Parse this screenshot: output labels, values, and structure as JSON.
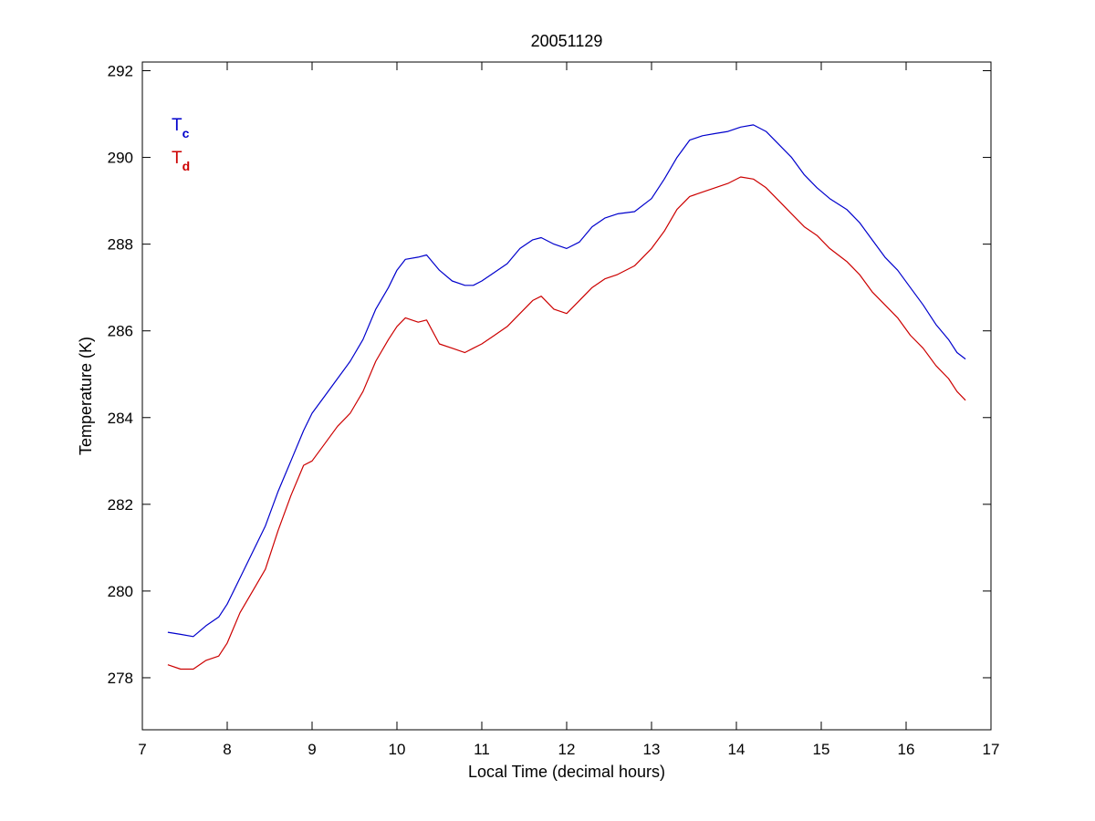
{
  "chart_data": {
    "type": "line",
    "title": "20051129",
    "xlabel": "Local Time (decimal hours)",
    "ylabel": "Temperature (K)",
    "xlim": [
      7,
      17
    ],
    "ylim": [
      276.8,
      292.2
    ],
    "xticks": [
      7,
      8,
      9,
      10,
      11,
      12,
      13,
      14,
      15,
      16,
      17
    ],
    "yticks": [
      278,
      280,
      282,
      284,
      286,
      288,
      290,
      292
    ],
    "grid": false,
    "legend_position": "top-left",
    "series": [
      {
        "name": "T",
        "name_subscript": "c",
        "color": "#0000cc",
        "points": [
          [
            7.3,
            279.05
          ],
          [
            7.45,
            279.0
          ],
          [
            7.6,
            278.95
          ],
          [
            7.75,
            279.2
          ],
          [
            7.9,
            279.4
          ],
          [
            8.0,
            279.7
          ],
          [
            8.15,
            280.3
          ],
          [
            8.3,
            280.9
          ],
          [
            8.45,
            281.5
          ],
          [
            8.6,
            282.3
          ],
          [
            8.75,
            283.0
          ],
          [
            8.9,
            283.7
          ],
          [
            9.0,
            284.1
          ],
          [
            9.15,
            284.5
          ],
          [
            9.3,
            284.9
          ],
          [
            9.45,
            285.3
          ],
          [
            9.6,
            285.8
          ],
          [
            9.75,
            286.5
          ],
          [
            9.9,
            287.0
          ],
          [
            10.0,
            287.4
          ],
          [
            10.1,
            287.65
          ],
          [
            10.25,
            287.7
          ],
          [
            10.35,
            287.75
          ],
          [
            10.5,
            287.4
          ],
          [
            10.65,
            287.15
          ],
          [
            10.8,
            287.05
          ],
          [
            10.9,
            287.05
          ],
          [
            11.0,
            287.15
          ],
          [
            11.15,
            287.35
          ],
          [
            11.3,
            287.55
          ],
          [
            11.45,
            287.9
          ],
          [
            11.6,
            288.1
          ],
          [
            11.7,
            288.15
          ],
          [
            11.85,
            288.0
          ],
          [
            12.0,
            287.9
          ],
          [
            12.15,
            288.05
          ],
          [
            12.3,
            288.4
          ],
          [
            12.45,
            288.6
          ],
          [
            12.6,
            288.7
          ],
          [
            12.8,
            288.75
          ],
          [
            13.0,
            289.05
          ],
          [
            13.15,
            289.5
          ],
          [
            13.3,
            290.0
          ],
          [
            13.45,
            290.4
          ],
          [
            13.6,
            290.5
          ],
          [
            13.75,
            290.55
          ],
          [
            13.9,
            290.6
          ],
          [
            14.05,
            290.7
          ],
          [
            14.2,
            290.75
          ],
          [
            14.35,
            290.6
          ],
          [
            14.5,
            290.3
          ],
          [
            14.65,
            290.0
          ],
          [
            14.8,
            289.6
          ],
          [
            14.95,
            289.3
          ],
          [
            15.1,
            289.05
          ],
          [
            15.3,
            288.8
          ],
          [
            15.45,
            288.5
          ],
          [
            15.6,
            288.1
          ],
          [
            15.75,
            287.7
          ],
          [
            15.9,
            287.4
          ],
          [
            16.05,
            287.0
          ],
          [
            16.2,
            286.6
          ],
          [
            16.35,
            286.15
          ],
          [
            16.5,
            285.8
          ],
          [
            16.6,
            285.5
          ],
          [
            16.7,
            285.35
          ]
        ]
      },
      {
        "name": "T",
        "name_subscript": "d",
        "color": "#cc0000",
        "points": [
          [
            7.3,
            278.3
          ],
          [
            7.45,
            278.2
          ],
          [
            7.6,
            278.2
          ],
          [
            7.75,
            278.4
          ],
          [
            7.9,
            278.5
          ],
          [
            8.0,
            278.8
          ],
          [
            8.15,
            279.5
          ],
          [
            8.3,
            280.0
          ],
          [
            8.45,
            280.5
          ],
          [
            8.6,
            281.4
          ],
          [
            8.75,
            282.2
          ],
          [
            8.9,
            282.9
          ],
          [
            9.0,
            283.0
          ],
          [
            9.15,
            283.4
          ],
          [
            9.3,
            283.8
          ],
          [
            9.45,
            284.1
          ],
          [
            9.6,
            284.6
          ],
          [
            9.75,
            285.3
          ],
          [
            9.9,
            285.8
          ],
          [
            10.0,
            286.1
          ],
          [
            10.1,
            286.3
          ],
          [
            10.25,
            286.2
          ],
          [
            10.35,
            286.25
          ],
          [
            10.5,
            285.7
          ],
          [
            10.65,
            285.6
          ],
          [
            10.8,
            285.5
          ],
          [
            10.9,
            285.6
          ],
          [
            11.0,
            285.7
          ],
          [
            11.15,
            285.9
          ],
          [
            11.3,
            286.1
          ],
          [
            11.45,
            286.4
          ],
          [
            11.6,
            286.7
          ],
          [
            11.7,
            286.8
          ],
          [
            11.85,
            286.5
          ],
          [
            12.0,
            286.4
          ],
          [
            12.15,
            286.7
          ],
          [
            12.3,
            287.0
          ],
          [
            12.45,
            287.2
          ],
          [
            12.6,
            287.3
          ],
          [
            12.8,
            287.5
          ],
          [
            13.0,
            287.9
          ],
          [
            13.15,
            288.3
          ],
          [
            13.3,
            288.8
          ],
          [
            13.45,
            289.1
          ],
          [
            13.6,
            289.2
          ],
          [
            13.75,
            289.3
          ],
          [
            13.9,
            289.4
          ],
          [
            14.05,
            289.55
          ],
          [
            14.2,
            289.5
          ],
          [
            14.35,
            289.3
          ],
          [
            14.5,
            289.0
          ],
          [
            14.65,
            288.7
          ],
          [
            14.8,
            288.4
          ],
          [
            14.95,
            288.2
          ],
          [
            15.1,
            287.9
          ],
          [
            15.3,
            287.6
          ],
          [
            15.45,
            287.3
          ],
          [
            15.6,
            286.9
          ],
          [
            15.75,
            286.6
          ],
          [
            15.9,
            286.3
          ],
          [
            16.05,
            285.9
          ],
          [
            16.2,
            285.6
          ],
          [
            16.35,
            285.2
          ],
          [
            16.5,
            284.9
          ],
          [
            16.6,
            284.6
          ],
          [
            16.7,
            284.4
          ]
        ]
      }
    ]
  }
}
